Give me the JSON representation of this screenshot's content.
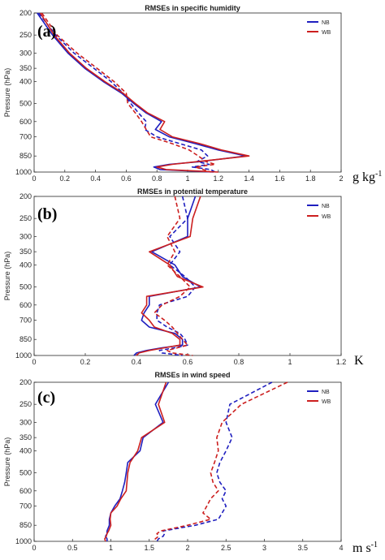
{
  "colors": {
    "NB": "#1f1fbf",
    "WB": "#cc1f1f"
  },
  "legend_labels": [
    "NB",
    "WB"
  ],
  "y_axis_label": "Pressure (hPa)",
  "chart_data": [
    {
      "type": "line",
      "panel_label": "(a)",
      "title": "RMSEs in specific humidity",
      "unit_label": "g kg",
      "unit_sup": "-1",
      "ylabel": "Pressure (hPa)",
      "xlim": [
        0,
        2
      ],
      "xticks": [
        0,
        0.2,
        0.4,
        0.6,
        0.8,
        1,
        1.2,
        1.4,
        1.6,
        1.8,
        2
      ],
      "ylim": [
        200,
        1000
      ],
      "yscale": "log",
      "yticks": [
        200,
        250,
        300,
        350,
        400,
        500,
        600,
        700,
        850,
        1000
      ],
      "legend": "top-right",
      "pressure": [
        200,
        250,
        300,
        350,
        400,
        450,
        500,
        550,
        600,
        650,
        700,
        750,
        800,
        850,
        900,
        925,
        950,
        975,
        1000
      ],
      "series": [
        {
          "name": "NB",
          "style": "solid",
          "values": [
            0.02,
            0.12,
            0.22,
            0.33,
            0.45,
            0.57,
            0.65,
            0.73,
            0.83,
            0.79,
            0.88,
            1.05,
            1.2,
            1.38,
            1.08,
            0.88,
            0.78,
            0.82,
            1.17
          ]
        },
        {
          "name": "NB",
          "style": "dashed",
          "values": [
            0.03,
            0.14,
            0.26,
            0.39,
            0.5,
            0.58,
            0.63,
            0.68,
            0.73,
            0.72,
            0.8,
            0.95,
            1.09,
            1.13,
            1.06,
            1.14,
            1.03,
            1.15,
            1.18
          ]
        },
        {
          "name": "WB",
          "style": "solid",
          "values": [
            0.04,
            0.13,
            0.23,
            0.34,
            0.46,
            0.58,
            0.66,
            0.74,
            0.85,
            0.82,
            0.9,
            1.08,
            1.22,
            1.4,
            1.06,
            0.9,
            0.8,
            0.86,
            1.2
          ]
        },
        {
          "name": "WB",
          "style": "dashed",
          "values": [
            0.05,
            0.15,
            0.28,
            0.41,
            0.52,
            0.6,
            0.61,
            0.66,
            0.7,
            0.73,
            0.76,
            0.9,
            1.01,
            1.07,
            1.12,
            1.18,
            1.05,
            1.1,
            1.15
          ]
        }
      ]
    },
    {
      "type": "line",
      "panel_label": "(b)",
      "title": "RMSEs in potential temperature",
      "unit_label": "K",
      "unit_sup": "",
      "ylabel": "Pressure (hPa)",
      "xlim": [
        0,
        1.2
      ],
      "xticks": [
        0,
        0.2,
        0.4,
        0.6,
        0.8,
        1,
        1.2
      ],
      "ylim": [
        200,
        1000
      ],
      "yscale": "log",
      "yticks": [
        200,
        250,
        300,
        350,
        400,
        500,
        600,
        700,
        850,
        1000
      ],
      "legend": "top-right",
      "pressure": [
        200,
        250,
        300,
        350,
        400,
        450,
        500,
        550,
        600,
        650,
        700,
        750,
        800,
        850,
        900,
        925,
        950,
        975,
        1000
      ],
      "series": [
        {
          "name": "NB",
          "style": "solid",
          "values": [
            0.63,
            0.6,
            0.6,
            0.46,
            0.55,
            0.58,
            0.65,
            0.45,
            0.45,
            0.43,
            0.42,
            0.45,
            0.55,
            0.58,
            0.58,
            0.5,
            0.44,
            0.4,
            0.39
          ]
        },
        {
          "name": "NB",
          "style": "dashed",
          "values": [
            0.58,
            0.6,
            0.53,
            0.57,
            0.53,
            0.59,
            0.63,
            0.6,
            0.49,
            0.48,
            0.48,
            0.52,
            0.57,
            0.59,
            0.6,
            0.55,
            0.49,
            0.5,
            0.58
          ]
        },
        {
          "name": "WB",
          "style": "solid",
          "values": [
            0.65,
            0.62,
            0.61,
            0.45,
            0.53,
            0.56,
            0.66,
            0.44,
            0.44,
            0.42,
            0.45,
            0.47,
            0.54,
            0.57,
            0.57,
            0.51,
            0.45,
            0.41,
            0.4
          ]
        },
        {
          "name": "WB",
          "style": "dashed",
          "values": [
            0.55,
            0.57,
            0.52,
            0.55,
            0.52,
            0.57,
            0.61,
            0.57,
            0.5,
            0.47,
            0.51,
            0.54,
            0.56,
            0.58,
            0.6,
            0.56,
            0.52,
            0.54,
            0.62
          ]
        }
      ]
    },
    {
      "type": "line",
      "panel_label": "(c)",
      "title": "RMSEs in wind speed",
      "unit_label": "m s",
      "unit_sup": "-1",
      "ylabel": "Pressure (hPa)",
      "xlim": [
        0,
        4
      ],
      "xticks": [
        0,
        0.5,
        1,
        1.5,
        2,
        2.5,
        3,
        3.5,
        4
      ],
      "ylim": [
        200,
        1000
      ],
      "yscale": "log",
      "yticks": [
        200,
        250,
        300,
        350,
        400,
        500,
        600,
        700,
        850,
        1000
      ],
      "legend": "top-right",
      "pressure": [
        200,
        250,
        300,
        350,
        400,
        450,
        500,
        550,
        600,
        650,
        700,
        750,
        800,
        850,
        900,
        925,
        950,
        975,
        1000
      ],
      "series": [
        {
          "name": "NB",
          "style": "solid",
          "values": [
            1.75,
            1.58,
            1.68,
            1.42,
            1.38,
            1.22,
            1.2,
            1.18,
            1.15,
            1.12,
            1.05,
            1.0,
            0.98,
            0.98,
            0.95,
            0.95,
            0.93,
            0.95,
            0.95
          ]
        },
        {
          "name": "NB",
          "style": "dashed",
          "values": [
            3.1,
            2.55,
            2.5,
            2.58,
            2.5,
            2.42,
            2.38,
            2.42,
            2.5,
            2.45,
            2.5,
            2.45,
            2.4,
            2.1,
            1.68,
            1.7,
            1.68,
            1.62,
            1.6
          ]
        },
        {
          "name": "WB",
          "style": "solid",
          "values": [
            1.72,
            1.62,
            1.7,
            1.4,
            1.35,
            1.25,
            1.22,
            1.21,
            1.2,
            1.13,
            1.08,
            1.0,
            0.99,
            1.0,
            0.97,
            0.95,
            0.94,
            0.92,
            0.93
          ]
        },
        {
          "name": "WB",
          "style": "dashed",
          "values": [
            3.3,
            2.7,
            2.45,
            2.38,
            2.4,
            2.35,
            2.3,
            2.33,
            2.4,
            2.3,
            2.25,
            2.2,
            2.3,
            2.0,
            1.65,
            1.6,
            1.62,
            1.58,
            1.55
          ]
        }
      ]
    }
  ]
}
